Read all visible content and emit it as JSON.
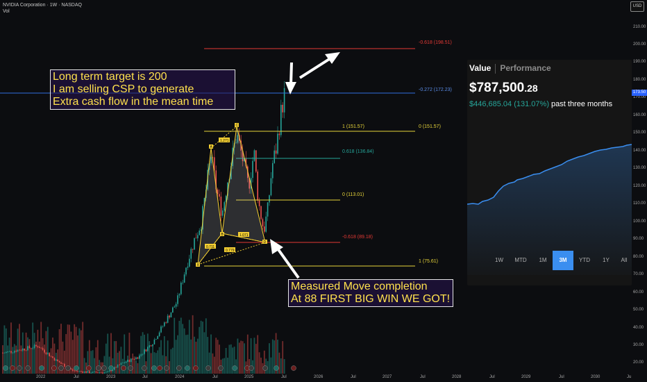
{
  "legend": {
    "symbol_line": "NVIDIA Corporation · 1W · NASDAQ",
    "vol_label": "Vol"
  },
  "currency_button": "USD",
  "price_tag": "173.50",
  "y_axis": [
    "210.00",
    "200.00",
    "190.00",
    "180.00",
    "170.00",
    "160.00",
    "150.00",
    "140.00",
    "130.00",
    "120.00",
    "110.00",
    "100.00",
    "90.00",
    "80.00",
    "70.00",
    "60.00",
    "50.00",
    "40.00",
    "30.00",
    "20.00"
  ],
  "x_axis": [
    "2022",
    "Jul",
    "2023",
    "Jul",
    "2024",
    "Jul",
    "2025",
    "Jul",
    "2026",
    "Jul",
    "2027",
    "Jul",
    "2028",
    "Jul",
    "2029",
    "Jul",
    "2030",
    "Ju"
  ],
  "fib_labels": {
    "ext_top": "-0.618 (198.51)",
    "ext_blue": "-0.272 (172.23)",
    "one_left": "1 (151.57)",
    "zero_right": "0 (151.57)",
    "g618": "0.618 (136.84)",
    "zero_mid": "0 (113.01)",
    "red618": "-0.618 (89.18)",
    "one_bottom": "1 (75.61)"
  },
  "harmonic": {
    "points": [
      "X",
      "A",
      "B",
      "C",
      "D"
    ],
    "ratios": [
      "1.271",
      "0.711",
      "1.071",
      "0.779"
    ]
  },
  "notes": {
    "top": [
      "Long term target is 200",
      "I am selling CSP to generate",
      "Extra cash flow in the mean time"
    ],
    "bottom": [
      "Measured Move completion",
      "At 88 FIRST BIG WIN WE GOT!"
    ]
  },
  "card": {
    "tab_value": "Value",
    "tab_performance": "Performance",
    "value_main": "$787,500",
    "value_cents": ".28",
    "gain": "$446,685.04 (131.07%)",
    "gain_period": "past three months",
    "ranges": [
      "1W",
      "MTD",
      "1M",
      "3M",
      "YTD",
      "1Y",
      "All"
    ],
    "active_range": "3M"
  },
  "colors": {
    "up": "#26a69a",
    "down": "#ef5350",
    "fib_yellow": "#e8d53a",
    "fib_red": "#e53935",
    "fib_blue": "#2f6fe0",
    "fib_green": "#26a69a",
    "pattern": "#f5d033",
    "card_line": "#3a8ef0"
  }
}
